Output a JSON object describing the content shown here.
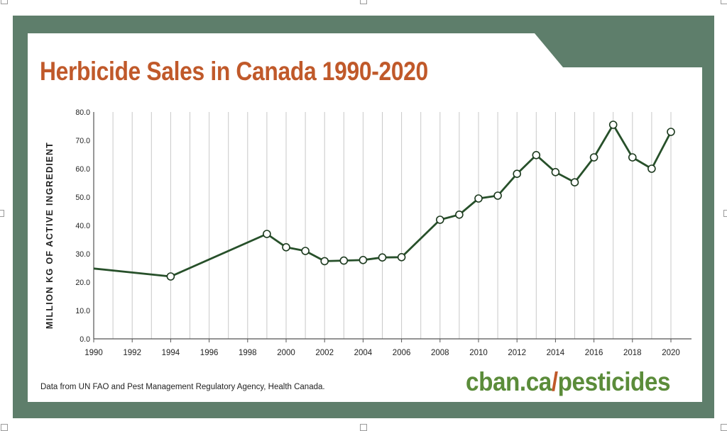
{
  "title": "Herbicide Sales in Canada 1990-2020",
  "source_note": "Data from UN FAO and Pest Management Regulatory Agency, Health Canada.",
  "brand": {
    "domain": "cban.ca",
    "slash": "/",
    "path": "pesticides"
  },
  "colors": {
    "frame": "#5e7e6b",
    "title": "#c0592a",
    "line": "#27502a",
    "grid": "#c8c8c8",
    "brand_green": "#5b8c3a",
    "brand_orange": "#c0592a"
  },
  "chart_data": {
    "type": "line",
    "title": "Herbicide Sales in Canada 1990-2020",
    "xlabel": "",
    "ylabel": "MILLION KG OF ACTIVE INGREDIENT",
    "xlim": [
      1990,
      2021
    ],
    "ylim": [
      0,
      80
    ],
    "x_ticks": [
      "1990",
      "1992",
      "1994",
      "1996",
      "1998",
      "2000",
      "2002",
      "2004",
      "2006",
      "2008",
      "2010",
      "2012",
      "2014",
      "2016",
      "2018",
      "2020"
    ],
    "y_ticks": [
      "0.0",
      "10.0",
      "20.0",
      "30.0",
      "40.0",
      "50.0",
      "60.0",
      "70.0",
      "80.0"
    ],
    "grid": "vertical",
    "series": [
      {
        "name": "Herbicide sales",
        "points": [
          {
            "x": 1990,
            "y": 24.8,
            "marker": false
          },
          {
            "x": 1994,
            "y": 22.0,
            "marker": true
          },
          {
            "x": 1999,
            "y": 37.0,
            "marker": true
          },
          {
            "x": 2000,
            "y": 32.3,
            "marker": true
          },
          {
            "x": 2001,
            "y": 31.0,
            "marker": true
          },
          {
            "x": 2002,
            "y": 27.4,
            "marker": true
          },
          {
            "x": 2003,
            "y": 27.6,
            "marker": true
          },
          {
            "x": 2004,
            "y": 27.8,
            "marker": true
          },
          {
            "x": 2005,
            "y": 28.7,
            "marker": true
          },
          {
            "x": 2006,
            "y": 28.8,
            "marker": true
          },
          {
            "x": 2008,
            "y": 42.0,
            "marker": true
          },
          {
            "x": 2009,
            "y": 43.8,
            "marker": true
          },
          {
            "x": 2010,
            "y": 49.5,
            "marker": true
          },
          {
            "x": 2011,
            "y": 50.5,
            "marker": true
          },
          {
            "x": 2012,
            "y": 58.2,
            "marker": true
          },
          {
            "x": 2013,
            "y": 64.8,
            "marker": true
          },
          {
            "x": 2014,
            "y": 58.8,
            "marker": true
          },
          {
            "x": 2015,
            "y": 55.2,
            "marker": true
          },
          {
            "x": 2016,
            "y": 64.0,
            "marker": true
          },
          {
            "x": 2017,
            "y": 75.5,
            "marker": true
          },
          {
            "x": 2018,
            "y": 64.0,
            "marker": true
          },
          {
            "x": 2019,
            "y": 60.0,
            "marker": true
          },
          {
            "x": 2020,
            "y": 73.0,
            "marker": true
          }
        ]
      }
    ]
  }
}
